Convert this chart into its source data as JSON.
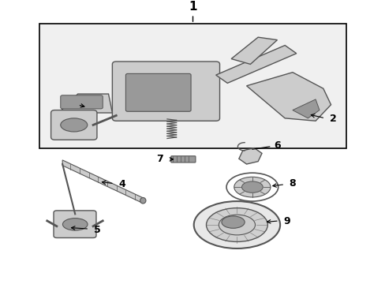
{
  "bg_color": "#ffffff",
  "box_color": "#000000",
  "line_color": "#000000",
  "gray": "#999999",
  "lgray": "#cccccc",
  "dgray": "#555555",
  "fig_width": 4.89,
  "fig_height": 3.6,
  "dpi": 100
}
